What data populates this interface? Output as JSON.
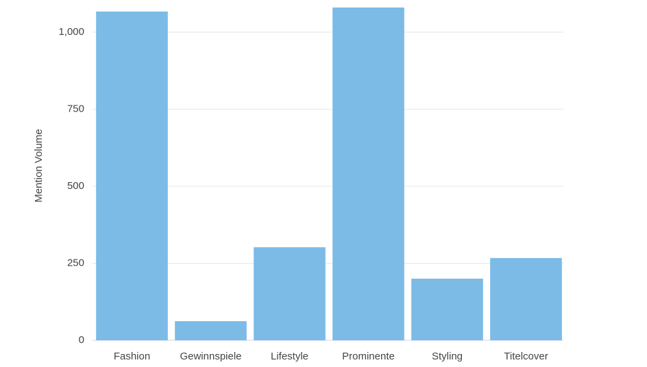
{
  "chart_data": {
    "type": "bar",
    "y_label": "Mention Volume",
    "categories": [
      "Fashion",
      "Gewinnspiele",
      "Lifestyle",
      "Prominente",
      "Styling",
      "Titelcover"
    ],
    "values": [
      1067,
      62,
      302,
      1080,
      200,
      267
    ],
    "color": "#7bbbe6",
    "ylim": [
      0,
      1100
    ],
    "yticks": [
      0,
      250,
      500,
      750,
      {
        "value": 1000,
        "label": "1,000"
      }
    ],
    "grid": true
  }
}
